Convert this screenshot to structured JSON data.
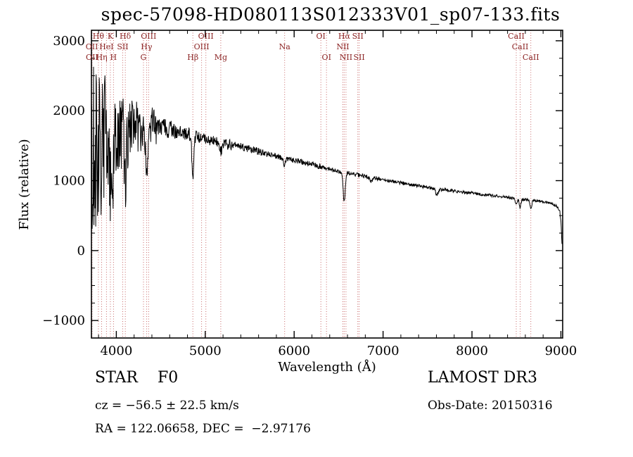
{
  "title": "spec-57098-HD080113S012333V01_sp07-133.fits",
  "colors": {
    "background": "#ffffff",
    "spectrum": "#000000",
    "frame": "#000000",
    "marker_line": "#c96a6a",
    "marker_label": "#8b2323"
  },
  "annotations": {
    "class_label": "STAR    F0",
    "survey": "LAMOST DR3",
    "cz": "cz = −56.5 ± 22.5 km/s",
    "obs_date": "Obs-Date: 20150316",
    "coords": "RA = 122.06658, DEC =  −2.97176"
  },
  "chart_data": {
    "type": "line",
    "title": "spec-57098-HD080113S012333V01_sp07-133.fits",
    "xlabel": "Wavelength (Å)",
    "ylabel": "Flux (relative)",
    "xlim": [
      3720,
      9020
    ],
    "ylim": [
      -1250,
      3150
    ],
    "x_ticks": [
      4000,
      5000,
      6000,
      7000,
      8000,
      9000
    ],
    "y_ticks": [
      -1000,
      0,
      1000,
      2000,
      3000
    ],
    "x_minor_step": 200,
    "y_minor_step": 250,
    "grid": false,
    "sample_step": 4,
    "noise_seed": 20150316,
    "continuum_points": [
      [
        3720,
        1350
      ],
      [
        3760,
        1420
      ],
      [
        3800,
        1480
      ],
      [
        3850,
        1520
      ],
      [
        3900,
        1560
      ],
      [
        3950,
        1600
      ],
      [
        4000,
        1650
      ],
      [
        4050,
        1690
      ],
      [
        4100,
        1720
      ],
      [
        4150,
        1740
      ],
      [
        4200,
        1760
      ],
      [
        4250,
        1770
      ],
      [
        4300,
        1780
      ],
      [
        4350,
        1785
      ],
      [
        4400,
        1790
      ],
      [
        4450,
        1780
      ],
      [
        4500,
        1765
      ],
      [
        4550,
        1750
      ],
      [
        4600,
        1735
      ],
      [
        4650,
        1715
      ],
      [
        4700,
        1700
      ],
      [
        4750,
        1685
      ],
      [
        4800,
        1670
      ],
      [
        4850,
        1660
      ],
      [
        4900,
        1645
      ],
      [
        4950,
        1620
      ],
      [
        5000,
        1600
      ],
      [
        5100,
        1565
      ],
      [
        5200,
        1535
      ],
      [
        5300,
        1510
      ],
      [
        5400,
        1485
      ],
      [
        5500,
        1455
      ],
      [
        5600,
        1420
      ],
      [
        5700,
        1385
      ],
      [
        5800,
        1350
      ],
      [
        5900,
        1320
      ],
      [
        6000,
        1290
      ],
      [
        6100,
        1260
      ],
      [
        6200,
        1230
      ],
      [
        6300,
        1195
      ],
      [
        6400,
        1165
      ],
      [
        6500,
        1135
      ],
      [
        6600,
        1110
      ],
      [
        6700,
        1085
      ],
      [
        6800,
        1060
      ],
      [
        6900,
        1040
      ],
      [
        7000,
        1015
      ],
      [
        7100,
        990
      ],
      [
        7200,
        970
      ],
      [
        7300,
        945
      ],
      [
        7400,
        925
      ],
      [
        7500,
        905
      ],
      [
        7600,
        885
      ],
      [
        7700,
        865
      ],
      [
        7800,
        850
      ],
      [
        7900,
        835
      ],
      [
        8000,
        820
      ],
      [
        8100,
        805
      ],
      [
        8200,
        790
      ],
      [
        8300,
        775
      ],
      [
        8400,
        760
      ],
      [
        8500,
        745
      ],
      [
        8600,
        730
      ],
      [
        8700,
        715
      ],
      [
        8800,
        700
      ],
      [
        8900,
        670
      ],
      [
        8950,
        640
      ],
      [
        8985,
        580
      ],
      [
        9000,
        430
      ],
      [
        9008,
        200
      ],
      [
        9014,
        70
      ]
    ],
    "absorption_lines": [
      {
        "name": "CaII K",
        "center": 3933,
        "depth": 650,
        "width": 10
      },
      {
        "name": "CaII H",
        "center": 3968,
        "depth": 600,
        "width": 10
      },
      {
        "name": "Hδ",
        "center": 4101,
        "depth": 700,
        "width": 12
      },
      {
        "name": "Hγ",
        "center": 4340,
        "depth": 750,
        "width": 12
      },
      {
        "name": "Hβ",
        "center": 4861,
        "depth": 560,
        "width": 12
      },
      {
        "name": "Mg",
        "center": 5175,
        "depth": 130,
        "width": 18
      },
      {
        "name": "Na",
        "center": 5893,
        "depth": 100,
        "width": 12
      },
      {
        "name": "Hα",
        "center": 6563,
        "depth": 420,
        "width": 12
      },
      {
        "name": "B band",
        "center": 6870,
        "depth": 60,
        "width": 14
      },
      {
        "name": "A band",
        "center": 7605,
        "depth": 80,
        "width": 16
      },
      {
        "name": "CaII",
        "center": 8498,
        "depth": 90,
        "width": 10
      },
      {
        "name": "CaII",
        "center": 8542,
        "depth": 120,
        "width": 10
      },
      {
        "name": "CaII",
        "center": 8662,
        "depth": 110,
        "width": 10
      }
    ],
    "noise_regions": [
      [
        3720,
        3790,
        1350
      ],
      [
        3790,
        3900,
        1000
      ],
      [
        3900,
        4000,
        700
      ],
      [
        4000,
        4150,
        550
      ],
      [
        4150,
        4300,
        400
      ],
      [
        4300,
        4450,
        260
      ],
      [
        4450,
        4700,
        130
      ],
      [
        4700,
        4950,
        100
      ],
      [
        4950,
        5300,
        75
      ],
      [
        5300,
        5700,
        55
      ],
      [
        5700,
        6300,
        40
      ],
      [
        6300,
        7000,
        30
      ],
      [
        7000,
        8000,
        24
      ],
      [
        8000,
        9020,
        20
      ]
    ],
    "line_markers": [
      {
        "label": "Hθ",
        "wavelength": 3798,
        "row": 1
      },
      {
        "label": "K",
        "wavelength": 3933,
        "row": 1
      },
      {
        "label": "Hδ",
        "wavelength": 4101,
        "row": 1
      },
      {
        "label": "OIII",
        "wavelength": 4363,
        "row": 1
      },
      {
        "label": "OIII",
        "wavelength": 5007,
        "row": 1
      },
      {
        "label": "OI",
        "wavelength": 6300,
        "row": 1
      },
      {
        "label": "Hα",
        "wavelength": 6563,
        "row": 1
      },
      {
        "label": "SII",
        "wavelength": 6716,
        "row": 1
      },
      {
        "label": "CaII",
        "wavelength": 8498,
        "row": 1
      },
      {
        "label": "OII",
        "wavelength": 3725,
        "row": 2
      },
      {
        "label": "HeI",
        "wavelength": 3889,
        "row": 2
      },
      {
        "label": "SII",
        "wavelength": 4072,
        "row": 2
      },
      {
        "label": "Hγ",
        "wavelength": 4340,
        "row": 2
      },
      {
        "label": "OIII",
        "wavelength": 4959,
        "row": 2
      },
      {
        "label": "Na",
        "wavelength": 5893,
        "row": 2
      },
      {
        "label": "NII",
        "wavelength": 6548,
        "row": 2
      },
      {
        "label": "CaII",
        "wavelength": 8542,
        "row": 2
      },
      {
        "label": "OII",
        "wavelength": 3727,
        "row": 3
      },
      {
        "label": "Hη",
        "wavelength": 3835,
        "row": 3
      },
      {
        "label": "H",
        "wavelength": 3968,
        "row": 3
      },
      {
        "label": "G",
        "wavelength": 4305,
        "row": 3
      },
      {
        "label": "Hβ",
        "wavelength": 4861,
        "row": 3
      },
      {
        "label": "Mg",
        "wavelength": 5175,
        "row": 3
      },
      {
        "label": "OI",
        "wavelength": 6364,
        "row": 3
      },
      {
        "label": "NII",
        "wavelength": 6583,
        "row": 3
      },
      {
        "label": "SII",
        "wavelength": 6731,
        "row": 3
      },
      {
        "label": "CaII",
        "wavelength": 8662,
        "row": 3
      }
    ]
  }
}
